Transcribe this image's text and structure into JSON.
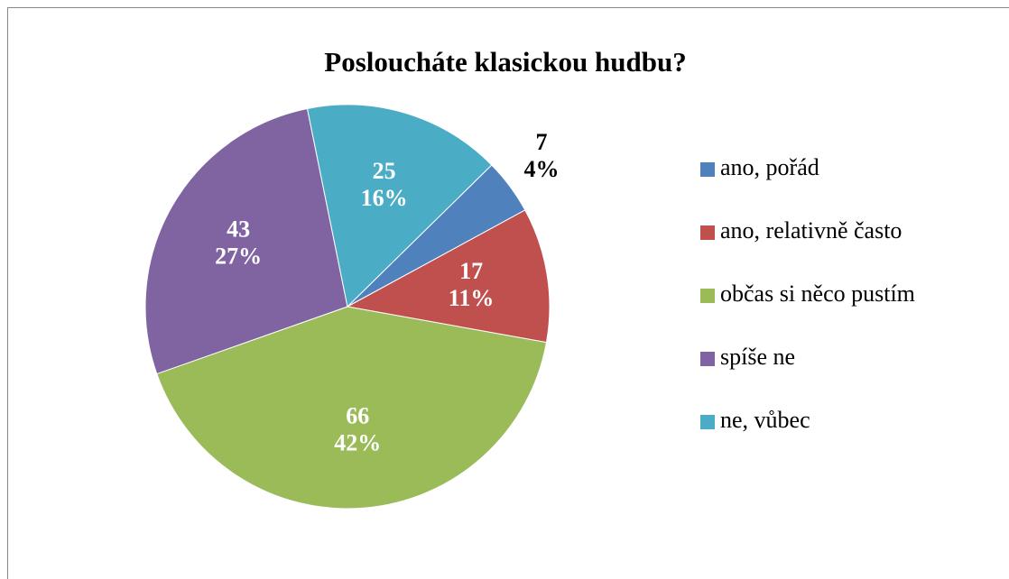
{
  "chart_data": {
    "type": "pie",
    "title": "Posloucháte klasickou hudbu?",
    "categories": [
      "ano, pořád",
      "ano, relativně často",
      "občas si něco pustím",
      "spíše ne",
      "ne, vůbec"
    ],
    "values": [
      7,
      17,
      66,
      43,
      25
    ],
    "percent_labels": [
      "4%",
      "11%",
      "42%",
      "27%",
      "16%"
    ],
    "colors": [
      "#4f81bd",
      "#c0504d",
      "#9bbb59",
      "#8064a2",
      "#4bacc6"
    ],
    "legend": "right"
  }
}
